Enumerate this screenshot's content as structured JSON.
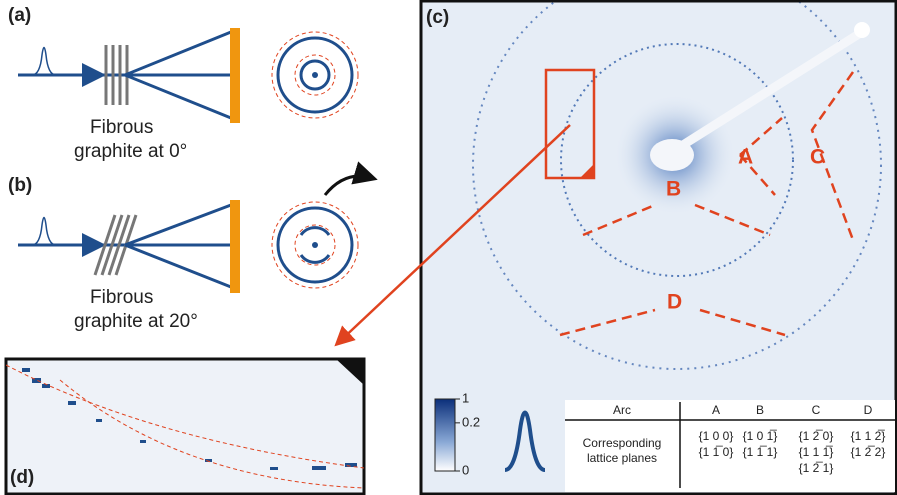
{
  "panels": {
    "a": {
      "label": "(a)",
      "caption": [
        "Fibrous",
        "graphite at 0°"
      ]
    },
    "b": {
      "label": "(b)",
      "caption": [
        "Fibrous",
        "graphite at 20°"
      ]
    },
    "c": {
      "label": "(c)",
      "arc_labels": [
        "A",
        "B",
        "C",
        "D"
      ],
      "colorbar": {
        "lim": [
          0,
          1
        ],
        "ticks": [
          0,
          0.2,
          1
        ],
        "scale_exponent": 0.25
      },
      "table": {
        "header": [
          "Arc",
          "A",
          "B",
          "C",
          "D"
        ],
        "row_header": [
          "Corresponding",
          "lattice planes"
        ],
        "cells": [
          [
            "{1 0 0}",
            "{1 1̅ 0}"
          ],
          [
            "{1 0 1̅}",
            "{1 1̅ 1}"
          ],
          [
            "{1 2̅ 0}",
            "{1 1 1̅}",
            "{1 2̅ 1}"
          ],
          [
            "{1 1 2̅}",
            "{1 2̅ 2}"
          ]
        ]
      }
    },
    "d": {
      "label": "(d)"
    }
  }
}
